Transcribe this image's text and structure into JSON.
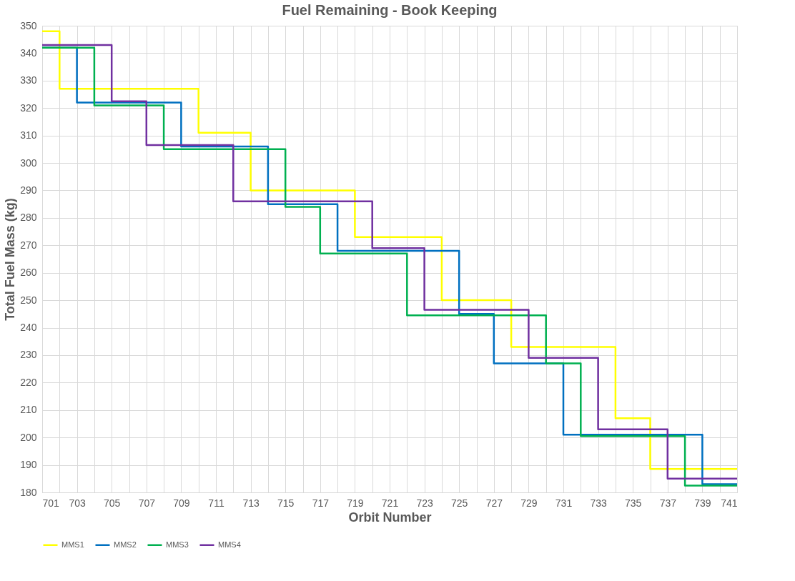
{
  "chart_data": {
    "type": "step",
    "title": "Fuel Remaining - Book Keeping",
    "xlabel": "Orbit Number",
    "ylabel": "Total Fuel Mass (kg)",
    "xlim": [
      701,
      741
    ],
    "ylim": [
      180,
      350
    ],
    "xticks": [
      701,
      {
        "value": 702,
        "label": null
      },
      703,
      {
        "value": 704,
        "label": null
      },
      705,
      {
        "value": 706,
        "label": null
      },
      707,
      {
        "value": 708,
        "label": null
      },
      709,
      {
        "value": 710,
        "label": null
      },
      711,
      {
        "value": 712,
        "label": null
      },
      713,
      {
        "value": 714,
        "label": null
      },
      715,
      {
        "value": 716,
        "label": null
      },
      717,
      {
        "value": 718,
        "label": null
      },
      719,
      {
        "value": 720,
        "label": null
      },
      721,
      {
        "value": 722,
        "label": null
      },
      723,
      {
        "value": 724,
        "label": null
      },
      725,
      {
        "value": 726,
        "label": null
      },
      727,
      {
        "value": 728,
        "label": null
      },
      729,
      {
        "value": 730,
        "label": null
      },
      731,
      {
        "value": 732,
        "label": null
      },
      733,
      {
        "value": 734,
        "label": null
      },
      735,
      {
        "value": 736,
        "label": null
      },
      737,
      {
        "value": 738,
        "label": null
      },
      739,
      {
        "value": 740,
        "label": null
      },
      741
    ],
    "yticks": [
      180,
      190,
      200,
      210,
      220,
      230,
      240,
      250,
      260,
      270,
      280,
      290,
      300,
      310,
      320,
      330,
      340,
      350
    ],
    "grid": true,
    "legend": "bottom",
    "line_style": "solid",
    "marker": "none",
    "series": [
      {
        "name": "MMS1",
        "color": "#ffff00",
        "x": [
          701,
          702,
          710,
          713,
          719,
          724,
          728,
          734,
          736,
          741
        ],
        "values": [
          348,
          327,
          311,
          290,
          273,
          250,
          233,
          207,
          188.5,
          188.5
        ]
      },
      {
        "name": "MMS2",
        "color": "#0070c0",
        "x": [
          701,
          703,
          709,
          714,
          718,
          725,
          727,
          731,
          739,
          741
        ],
        "values": [
          342,
          322,
          306,
          285,
          268,
          245,
          227,
          201,
          183,
          183
        ]
      },
      {
        "name": "MMS3",
        "color": "#00b050",
        "x": [
          701,
          704,
          708,
          715,
          717,
          722,
          730,
          732,
          738,
          741
        ],
        "values": [
          342,
          321,
          305,
          284,
          267,
          244.5,
          227,
          200.5,
          182.5,
          182.5
        ]
      },
      {
        "name": "MMS4",
        "color": "#7030a0",
        "x": [
          701,
          705,
          707,
          712,
          720,
          723,
          729,
          733,
          737,
          741
        ],
        "values": [
          343,
          322.5,
          306.5,
          286,
          269,
          246.5,
          229,
          203,
          185,
          185
        ]
      }
    ]
  }
}
